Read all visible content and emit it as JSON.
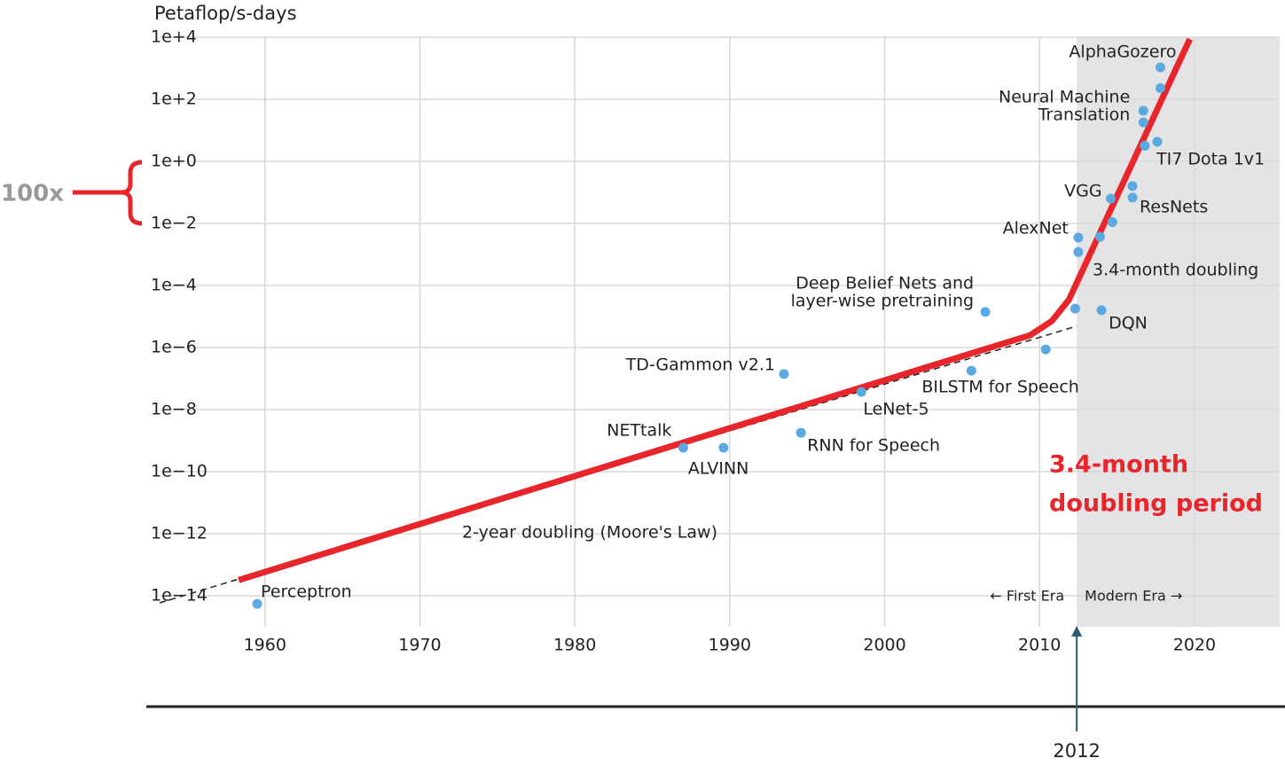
{
  "chart_data": {
    "type": "scatter",
    "y_label": "Petaflop/s-days",
    "ylog": true,
    "xlim": [
      1953.2,
      2025.5
    ],
    "ylim": [
      1e-15,
      10000
    ],
    "xticks": [
      1960,
      1970,
      1980,
      1990,
      2000,
      2010,
      2020
    ],
    "yticks": [
      {
        "value": 10000,
        "label": "1e+4"
      },
      {
        "value": 100,
        "label": "1e+2"
      },
      {
        "value": 1,
        "label": "1e+0"
      },
      {
        "value": 0.01,
        "label": "1e−2"
      },
      {
        "value": 0.0001,
        "label": "1e−4"
      },
      {
        "value": 1e-06,
        "label": "1e−6"
      },
      {
        "value": 1e-08,
        "label": "1e−8"
      },
      {
        "value": 1e-10,
        "label": "1e−10"
      },
      {
        "value": 1e-12,
        "label": "1e−12"
      },
      {
        "value": 1e-14,
        "label": "1e−14"
      }
    ],
    "grid": true,
    "color": "#5aa9e0",
    "x": [
      1959.5,
      1987.0,
      1989.6,
      1994.6,
      1993.5,
      1998.5,
      2005.6,
      2006.5,
      2010.4,
      2012.3,
      2014.0,
      2012.5,
      2012.5,
      2013.9,
      2014.7,
      2014.6,
      2016.0,
      2016.0,
      2016.8,
      2017.6,
      2016.7,
      2016.7,
      2017.8,
      2017.8
    ],
    "values": [
      5.5e-15,
      5.9e-10,
      5.9e-10,
      1.8e-09,
      1.4e-07,
      3.7e-08,
      1.8e-07,
      1.4e-05,
      8.7e-07,
      1.8e-05,
      1.6e-05,
      0.0035,
      0.0012,
      0.0037,
      0.011,
      0.063,
      0.068,
      0.16,
      3.2,
      4.3,
      43,
      18,
      230,
      1070
    ],
    "labels": [
      [
        "Perceptron"
      ],
      [
        "NETtalk"
      ],
      [
        "ALVINN"
      ],
      [
        "RNN for Speech"
      ],
      [
        "TD-Gammon v2.1"
      ],
      [
        "LeNet-5"
      ],
      [
        "BILSTM for Speech"
      ],
      [
        "Deep Belief Nets and",
        "layer-wise pretraining"
      ],
      null,
      null,
      [
        "DQN"
      ],
      [
        "AlexNet"
      ],
      null,
      null,
      null,
      [
        "VGG"
      ],
      [
        "ResNets"
      ],
      null,
      null,
      [
        "TI7 Dota 1v1"
      ],
      [
        "Neural Machine",
        "Translation"
      ],
      null,
      null,
      [
        "AlphaGozero"
      ]
    ],
    "trend": {
      "color": "#e8252a",
      "x": [
        1958.3,
        2009.4,
        2010.8,
        2011.9,
        2019.7
      ],
      "values": [
        3.2e-14,
        2.5e-06,
        7.2e-06,
        3.5e-05,
        8700
      ]
    },
    "moore_dashed": {
      "x": [
        1953.2,
        2012.4
      ],
      "values": [
        5.9e-15,
        4.9e-06
      ]
    },
    "era_boundary": {
      "value": 2012.4,
      "label": "2012"
    },
    "era_labels": [
      "← First Era",
      "Modern Era →"
    ],
    "moore_label": "2-year doubling (Moore's Law)",
    "modern_label": "3.4-month doubling",
    "highlight_label": [
      "3.4-month",
      "doubling period"
    ],
    "bracket_label": "100x"
  }
}
